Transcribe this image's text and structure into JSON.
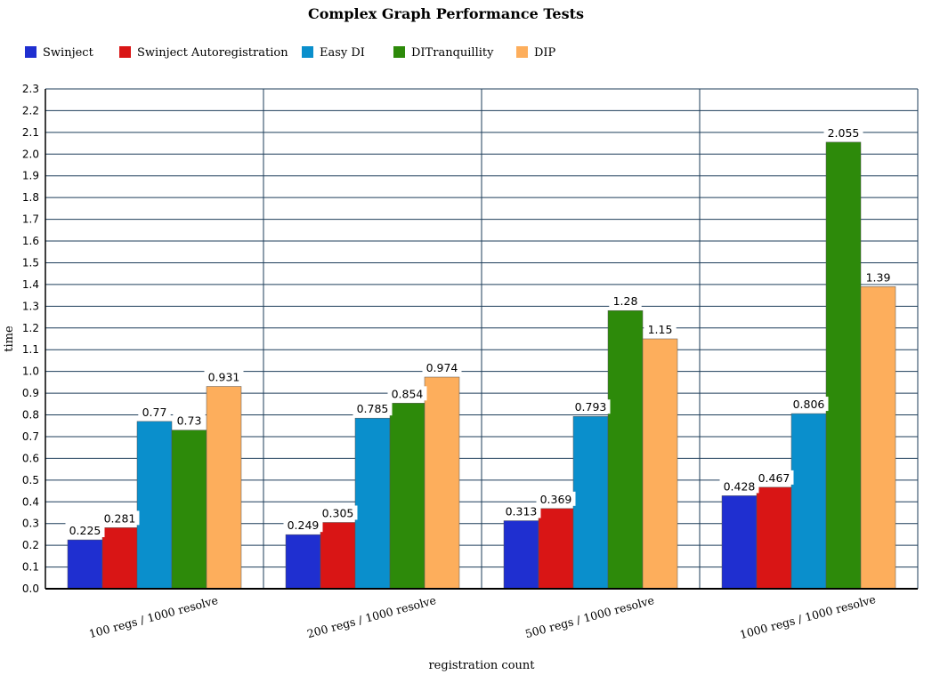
{
  "chart_data": {
    "type": "bar",
    "title": "Complex Graph Performance Tests",
    "xlabel": "registration count",
    "ylabel": "time",
    "ylim": [
      0,
      2.3
    ],
    "ytick_step": 0.1,
    "grid": true,
    "legend_position": "top",
    "categories": [
      "100 regs / 1000 resolve",
      "200 regs / 1000 resolve",
      "500 regs / 1000 resolve",
      "1000 regs / 1000 resolve"
    ],
    "series": [
      {
        "name": "Swinject",
        "color": "#1f2fd0",
        "values": [
          0.225,
          0.249,
          0.313,
          0.428
        ]
      },
      {
        "name": "Swinject Autoregistration",
        "color": "#d91515",
        "values": [
          0.281,
          0.305,
          0.369,
          0.467
        ]
      },
      {
        "name": "Easy DI",
        "color": "#0a8fcc",
        "values": [
          0.77,
          0.785,
          0.793,
          0.806
        ]
      },
      {
        "name": "DITranquillity",
        "color": "#2d8a0a",
        "values": [
          0.73,
          0.854,
          1.28,
          2.055
        ]
      },
      {
        "name": "DIP",
        "color": "#fdae5c",
        "values": [
          0.931,
          0.974,
          1.15,
          1.39
        ]
      }
    ]
  }
}
